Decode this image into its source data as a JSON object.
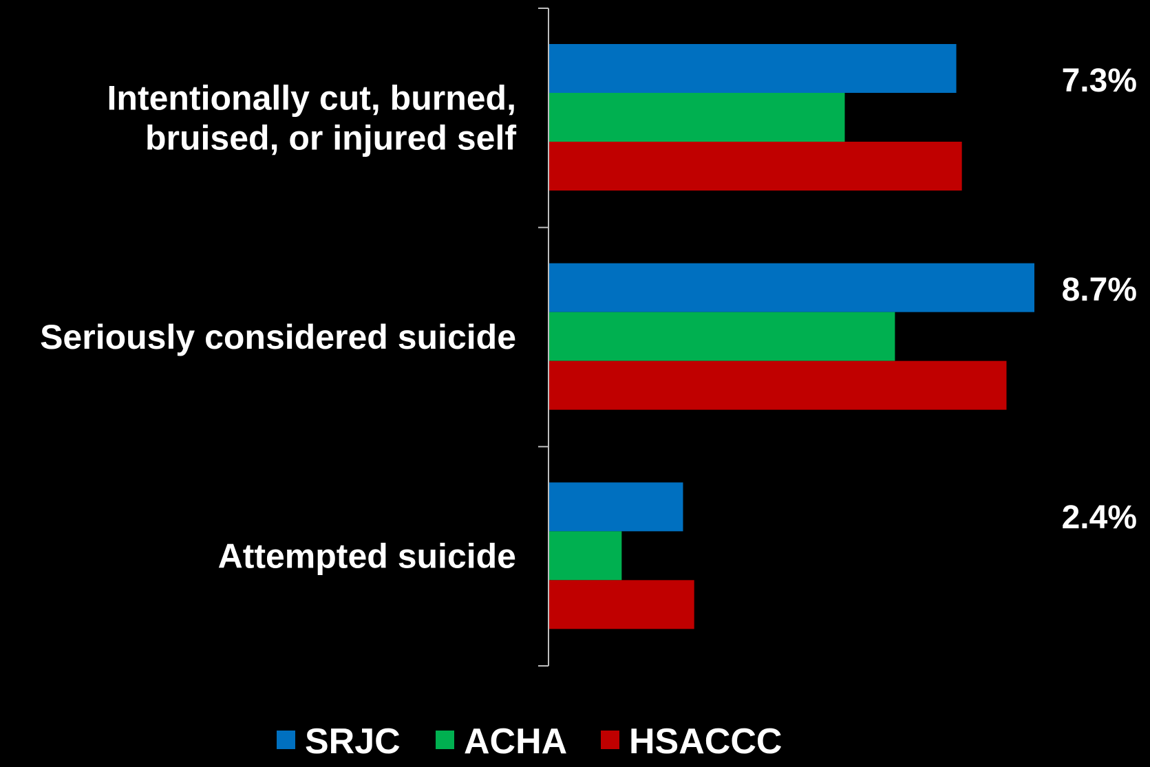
{
  "chart_data": {
    "type": "bar",
    "orientation": "horizontal",
    "categories": [
      [
        "Intentionally cut, burned,",
        "bruised, or injured self"
      ],
      [
        "Seriously considered suicide"
      ],
      [
        "Attempted suicide"
      ]
    ],
    "series": [
      {
        "name": "SRJC",
        "color": "#0070C0",
        "values": [
          7.3,
          8.7,
          2.4
        ]
      },
      {
        "name": "ACHA",
        "color": "#00B050",
        "values": [
          5.3,
          6.2,
          1.3
        ]
      },
      {
        "name": "HSACCC",
        "color": "#C00000",
        "values": [
          7.4,
          8.2,
          2.6
        ]
      }
    ],
    "value_labels": [
      "7.3%",
      "8.7%",
      "2.4%"
    ],
    "xlim": [
      0,
      8.7
    ],
    "grid": false,
    "legend_position": "bottom",
    "background": "#000000",
    "text_color": "#ffffff"
  }
}
